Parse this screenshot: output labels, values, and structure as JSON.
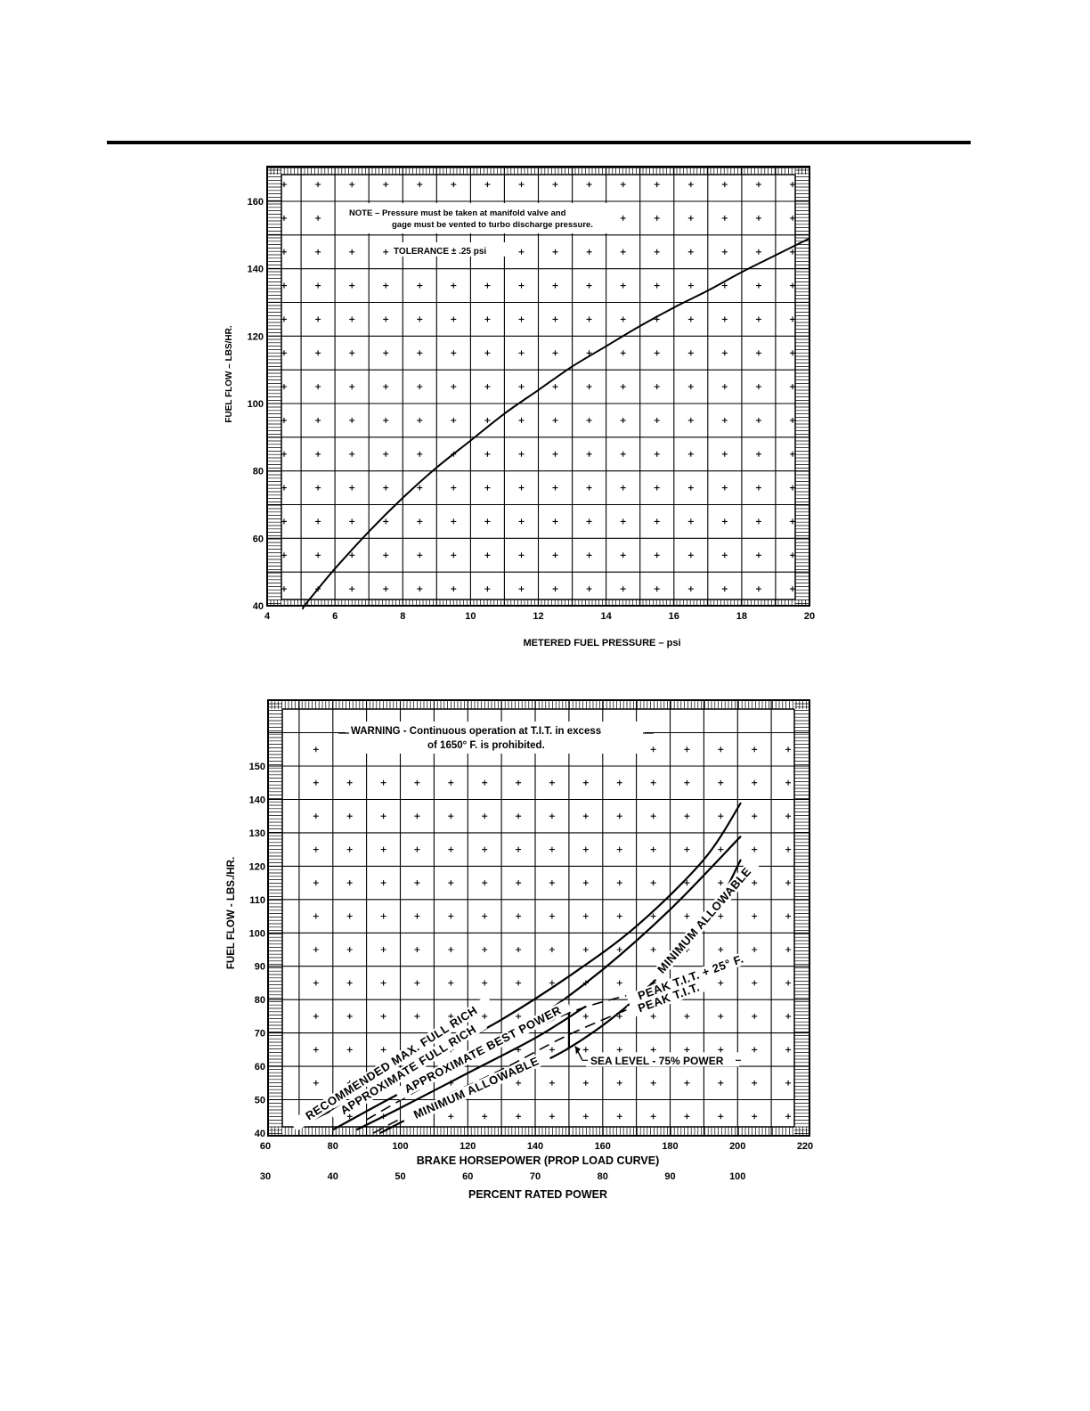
{
  "chart_data": [
    {
      "type": "line",
      "title": "",
      "xlabel": "METERED FUEL PRESSURE – psi",
      "ylabel": "FUEL FLOW – LBS/HR.",
      "xlim": [
        4,
        20
      ],
      "ylim": [
        40,
        170
      ],
      "x_ticks": [
        "4",
        "6",
        "8",
        "10",
        "12",
        "14",
        "16",
        "18",
        "20"
      ],
      "y_ticks": [
        "40",
        "60",
        "80",
        "100",
        "120",
        "140",
        "160"
      ],
      "grid": true,
      "annotations": [
        "NOTE – Pressure must be taken at manifold valve and",
        "gage must be vented to turbo discharge pressure.",
        "TOLERANCE ± .25 psi"
      ],
      "series": [
        {
          "name": "Fuel flow",
          "x": [
            5.1,
            5.5,
            6,
            7,
            8,
            9,
            10,
            11,
            12,
            13,
            14,
            15,
            16,
            17,
            18,
            19,
            20
          ],
          "y": [
            40,
            45,
            51,
            62,
            72,
            81,
            89,
            97,
            104,
            111,
            117,
            123,
            128.5,
            133.5,
            139,
            144,
            149
          ]
        }
      ]
    },
    {
      "type": "line",
      "title": "",
      "xlabel": "BRAKE HORSEPOWER (PROP LOAD CURVE)",
      "ylabel": "FUEL FLOW - LBS./HR.",
      "x2label": "PERCENT RATED POWER",
      "xlim": [
        60,
        220
      ],
      "ylim": [
        40,
        165
      ],
      "x_ticks": [
        "60",
        "80",
        "100",
        "120",
        "140",
        "160",
        "180",
        "200",
        "220"
      ],
      "x2_ticks": [
        "30",
        "40",
        "50",
        "60",
        "70",
        "80",
        "90",
        "100"
      ],
      "y_ticks": [
        "40",
        "50",
        "60",
        "70",
        "80",
        "90",
        "100",
        "110",
        "120",
        "130",
        "140",
        "150"
      ],
      "grid": true,
      "annotations": [
        "WARNING - Continuous operation at T.I.T. in excess",
        "of 1650° F. is prohibited.",
        "SEA LEVEL - 75% POWER"
      ],
      "series": [
        {
          "name": "RECOMMENDED MAX. FULL RICH",
          "style": "solid",
          "x": [
            72,
            90,
            110,
            130,
            150,
            170,
            190,
            201
          ],
          "y": [
            43,
            52,
            63,
            74,
            87,
            102,
            122,
            139
          ]
        },
        {
          "name": "APPROXIMATE FULL RICH",
          "style": "solid",
          "x": [
            80,
            100,
            120,
            140,
            160,
            180,
            201
          ],
          "y": [
            41,
            52,
            62,
            74,
            89,
            107,
            129
          ]
        },
        {
          "name": "APPROXIMATE BEST POWER",
          "style": "solid",
          "x": [
            87,
            100,
            120,
            140,
            155
          ],
          "y": [
            41,
            47.5,
            58,
            68.5,
            78
          ]
        },
        {
          "name": "MINIMUM ALLOWABLE",
          "style": "solid",
          "x": [
            94,
            110,
            130,
            150,
            170,
            190,
            201
          ],
          "y": [
            40,
            48,
            56,
            65.5,
            80.5,
            102,
            122
          ]
        },
        {
          "name": "PEAK T.I.T. + 25° F.",
          "style": "dashed",
          "x": [
            90,
            110,
            130,
            150,
            170,
            195
          ],
          "y": [
            44,
            55.5,
            66,
            76,
            82,
            88
          ]
        },
        {
          "name": "PEAK T.I.T.",
          "style": "dashed",
          "x": [
            92,
            110,
            130,
            150,
            172
          ],
          "y": [
            40,
            49.5,
            59,
            69.5,
            79
          ]
        },
        {
          "name": "Sea level 75% power marker",
          "style": "solid",
          "x": [
            150,
            150
          ],
          "y": [
            65.5,
            78
          ]
        }
      ]
    }
  ]
}
